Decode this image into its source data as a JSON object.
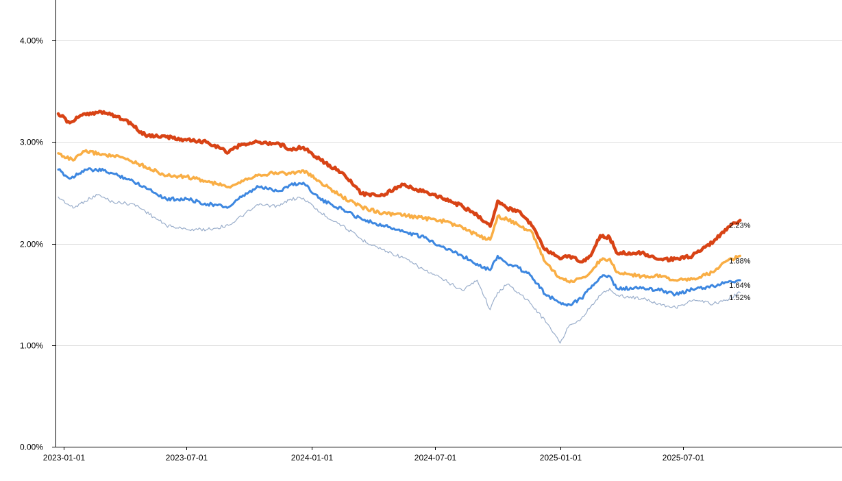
{
  "chart_data": {
    "type": "line",
    "title": "",
    "xlabel": "",
    "ylabel": "",
    "xlim": [
      "2022-12-20",
      "2026-02-20"
    ],
    "ylim": [
      0,
      4.4
    ],
    "grid": true,
    "y_ticks": [
      {
        "value": 0,
        "label": "0.00%"
      },
      {
        "value": 1,
        "label": "1.00%"
      },
      {
        "value": 2,
        "label": "2.00%"
      },
      {
        "value": 3,
        "label": "3.00%"
      },
      {
        "value": 4,
        "label": "4.00%"
      }
    ],
    "x_ticks": [
      {
        "value": "2023-01-01",
        "label": "2023-01-01"
      },
      {
        "value": "2023-07-01",
        "label": "2023-07-01"
      },
      {
        "value": "2024-01-01",
        "label": "2024-01-01"
      },
      {
        "value": "2024-07-01",
        "label": "2024-07-01"
      },
      {
        "value": "2025-01-01",
        "label": "2025-01-01"
      },
      {
        "value": "2025-07-01",
        "label": "2025-07-01"
      }
    ],
    "series": [
      {
        "color": "#9aaecb",
        "width": 1.2,
        "end_label": "1.52%",
        "points": [
          [
            "2022-12-24",
            2.46
          ],
          [
            "2023-01-15",
            2.35
          ],
          [
            "2023-02-01",
            2.42
          ],
          [
            "2023-02-20",
            2.48
          ],
          [
            "2023-03-15",
            2.41
          ],
          [
            "2023-04-15",
            2.39
          ],
          [
            "2023-05-01",
            2.32
          ],
          [
            "2023-06-01",
            2.18
          ],
          [
            "2023-07-01",
            2.14
          ],
          [
            "2023-08-01",
            2.14
          ],
          [
            "2023-09-01",
            2.18
          ],
          [
            "2023-09-20",
            2.27
          ],
          [
            "2023-10-15",
            2.38
          ],
          [
            "2023-11-15",
            2.37
          ],
          [
            "2023-12-01",
            2.44
          ],
          [
            "2023-12-20",
            2.45
          ],
          [
            "2024-01-15",
            2.3
          ],
          [
            "2024-02-15",
            2.18
          ],
          [
            "2024-03-15",
            2.04
          ],
          [
            "2024-04-15",
            1.94
          ],
          [
            "2024-05-15",
            1.86
          ],
          [
            "2024-06-15",
            1.74
          ],
          [
            "2024-07-15",
            1.64
          ],
          [
            "2024-08-10",
            1.54
          ],
          [
            "2024-09-01",
            1.64
          ],
          [
            "2024-09-20",
            1.35
          ],
          [
            "2024-10-01",
            1.52
          ],
          [
            "2024-10-15",
            1.6
          ],
          [
            "2024-11-01",
            1.52
          ],
          [
            "2024-11-20",
            1.4
          ],
          [
            "2024-12-15",
            1.2
          ],
          [
            "2025-01-01",
            1.02
          ],
          [
            "2025-01-15",
            1.2
          ],
          [
            "2025-02-01",
            1.26
          ],
          [
            "2025-02-15",
            1.38
          ],
          [
            "2025-03-01",
            1.49
          ],
          [
            "2025-03-15",
            1.56
          ],
          [
            "2025-03-25",
            1.49
          ],
          [
            "2025-05-01",
            1.46
          ],
          [
            "2025-06-01",
            1.4
          ],
          [
            "2025-06-20",
            1.37
          ],
          [
            "2025-07-15",
            1.44
          ],
          [
            "2025-08-15",
            1.41
          ],
          [
            "2025-09-01",
            1.44
          ],
          [
            "2025-09-23",
            1.52
          ]
        ]
      },
      {
        "color": "#3d87e0",
        "width": 3,
        "end_label": "1.64%",
        "points": [
          [
            "2022-12-24",
            2.73
          ],
          [
            "2023-01-10",
            2.64
          ],
          [
            "2023-02-01",
            2.73
          ],
          [
            "2023-03-01",
            2.72
          ],
          [
            "2023-04-01",
            2.65
          ],
          [
            "2023-05-01",
            2.56
          ],
          [
            "2023-06-01",
            2.44
          ],
          [
            "2023-07-01",
            2.44
          ],
          [
            "2023-08-01",
            2.39
          ],
          [
            "2023-09-01",
            2.36
          ],
          [
            "2023-09-20",
            2.46
          ],
          [
            "2023-10-15",
            2.56
          ],
          [
            "2023-11-15",
            2.52
          ],
          [
            "2023-12-01",
            2.58
          ],
          [
            "2023-12-20",
            2.6
          ],
          [
            "2024-01-15",
            2.43
          ],
          [
            "2024-02-15",
            2.34
          ],
          [
            "2024-03-15",
            2.24
          ],
          [
            "2024-04-15",
            2.18
          ],
          [
            "2024-05-15",
            2.12
          ],
          [
            "2024-06-15",
            2.06
          ],
          [
            "2024-07-15",
            1.96
          ],
          [
            "2024-08-10",
            1.88
          ],
          [
            "2024-09-01",
            1.8
          ],
          [
            "2024-09-20",
            1.74
          ],
          [
            "2024-10-01",
            1.88
          ],
          [
            "2024-10-15",
            1.8
          ],
          [
            "2024-11-01",
            1.76
          ],
          [
            "2024-11-20",
            1.68
          ],
          [
            "2024-12-10",
            1.5
          ],
          [
            "2025-01-01",
            1.42
          ],
          [
            "2025-01-15",
            1.4
          ],
          [
            "2025-02-01",
            1.46
          ],
          [
            "2025-02-15",
            1.56
          ],
          [
            "2025-03-01",
            1.67
          ],
          [
            "2025-03-15",
            1.68
          ],
          [
            "2025-03-25",
            1.56
          ],
          [
            "2025-05-01",
            1.56
          ],
          [
            "2025-06-01",
            1.54
          ],
          [
            "2025-06-20",
            1.5
          ],
          [
            "2025-07-15",
            1.55
          ],
          [
            "2025-08-15",
            1.58
          ],
          [
            "2025-09-01",
            1.62
          ],
          [
            "2025-09-23",
            1.64
          ]
        ]
      },
      {
        "color": "#f9ae45",
        "width": 3.5,
        "end_label": "1.88%",
        "points": [
          [
            "2022-12-24",
            2.89
          ],
          [
            "2023-01-15",
            2.82
          ],
          [
            "2023-02-01",
            2.91
          ],
          [
            "2023-03-01",
            2.88
          ],
          [
            "2023-04-01",
            2.84
          ],
          [
            "2023-05-01",
            2.76
          ],
          [
            "2023-06-01",
            2.67
          ],
          [
            "2023-07-01",
            2.66
          ],
          [
            "2023-08-01",
            2.61
          ],
          [
            "2023-09-01",
            2.56
          ],
          [
            "2023-09-20",
            2.62
          ],
          [
            "2023-10-15",
            2.68
          ],
          [
            "2023-11-15",
            2.7
          ],
          [
            "2023-12-01",
            2.69
          ],
          [
            "2023-12-20",
            2.72
          ],
          [
            "2024-01-15",
            2.6
          ],
          [
            "2024-02-15",
            2.46
          ],
          [
            "2024-03-15",
            2.36
          ],
          [
            "2024-04-15",
            2.3
          ],
          [
            "2024-05-15",
            2.28
          ],
          [
            "2024-06-15",
            2.25
          ],
          [
            "2024-07-15",
            2.22
          ],
          [
            "2024-08-10",
            2.16
          ],
          [
            "2024-09-01",
            2.08
          ],
          [
            "2024-09-20",
            2.04
          ],
          [
            "2024-10-01",
            2.27
          ],
          [
            "2024-10-15",
            2.24
          ],
          [
            "2024-11-01",
            2.18
          ],
          [
            "2024-11-20",
            2.12
          ],
          [
            "2024-12-10",
            1.82
          ],
          [
            "2025-01-01",
            1.66
          ],
          [
            "2025-01-15",
            1.62
          ],
          [
            "2025-02-01",
            1.66
          ],
          [
            "2025-02-15",
            1.72
          ],
          [
            "2025-03-01",
            1.84
          ],
          [
            "2025-03-15",
            1.85
          ],
          [
            "2025-03-25",
            1.72
          ],
          [
            "2025-05-01",
            1.68
          ],
          [
            "2025-06-01",
            1.68
          ],
          [
            "2025-06-20",
            1.64
          ],
          [
            "2025-07-15",
            1.65
          ],
          [
            "2025-08-15",
            1.72
          ],
          [
            "2025-09-01",
            1.82
          ],
          [
            "2025-09-23",
            1.88
          ]
        ]
      },
      {
        "color": "#d84315",
        "width": 4.5,
        "end_label": "2.23%",
        "points": [
          [
            "2022-12-24",
            3.28
          ],
          [
            "2023-01-10",
            3.19
          ],
          [
            "2023-02-01",
            3.28
          ],
          [
            "2023-03-01",
            3.3
          ],
          [
            "2023-04-01",
            3.22
          ],
          [
            "2023-05-01",
            3.07
          ],
          [
            "2023-06-01",
            3.05
          ],
          [
            "2023-07-01",
            3.02
          ],
          [
            "2023-08-01",
            3.0
          ],
          [
            "2023-09-01",
            2.9
          ],
          [
            "2023-09-20",
            2.98
          ],
          [
            "2023-10-15",
            3.0
          ],
          [
            "2023-11-15",
            2.98
          ],
          [
            "2023-12-01",
            2.93
          ],
          [
            "2023-12-20",
            2.95
          ],
          [
            "2024-01-15",
            2.82
          ],
          [
            "2024-02-15",
            2.7
          ],
          [
            "2024-03-15",
            2.49
          ],
          [
            "2024-04-15",
            2.48
          ],
          [
            "2024-05-15",
            2.58
          ],
          [
            "2024-06-15",
            2.51
          ],
          [
            "2024-07-15",
            2.44
          ],
          [
            "2024-08-10",
            2.37
          ],
          [
            "2024-09-01",
            2.28
          ],
          [
            "2024-09-20",
            2.17
          ],
          [
            "2024-10-01",
            2.42
          ],
          [
            "2024-10-15",
            2.35
          ],
          [
            "2024-11-01",
            2.32
          ],
          [
            "2024-11-20",
            2.18
          ],
          [
            "2024-12-10",
            1.94
          ],
          [
            "2025-01-01",
            1.85
          ],
          [
            "2025-01-15",
            1.88
          ],
          [
            "2025-02-01",
            1.82
          ],
          [
            "2025-02-15",
            1.88
          ],
          [
            "2025-03-01",
            2.08
          ],
          [
            "2025-03-15",
            2.06
          ],
          [
            "2025-03-25",
            1.91
          ],
          [
            "2025-05-01",
            1.91
          ],
          [
            "2025-06-01",
            1.84
          ],
          [
            "2025-06-20",
            1.85
          ],
          [
            "2025-07-15",
            1.88
          ],
          [
            "2025-08-15",
            2.02
          ],
          [
            "2025-09-01",
            2.14
          ],
          [
            "2025-09-23",
            2.23
          ]
        ]
      }
    ]
  }
}
